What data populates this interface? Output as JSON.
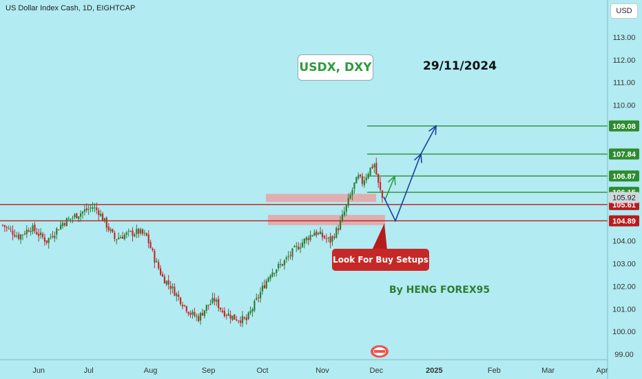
{
  "header": {
    "symbol_title": "US Dollar Index Cash, 1D, EIGHTCAP",
    "currency": "USD"
  },
  "annotations": {
    "title_box": "USDX, DXY",
    "date": "29/11/2024",
    "author": "By HENG FOREX95",
    "callout": "Look For Buy Setups"
  },
  "colors": {
    "background": "#b2ebf2",
    "candle_up": "#2e7d32",
    "candle_down": "#c62828",
    "target_line": "#2e8b2e",
    "support_line": "#b71c1c",
    "projection_blue": "#1a3f9e",
    "projection_green": "#2e9a3f",
    "zone": "#ef9a9a"
  },
  "chart_data": {
    "type": "candlestick",
    "title": "US Dollar Index Cash, 1D, EIGHTCAP",
    "ylim": [
      98.8,
      114.3
    ],
    "y_axis_ticks": [
      "113.00",
      "112.00",
      "111.00",
      "110.00",
      "109.00",
      "108.00",
      "107.00",
      "106.00",
      "105.00",
      "104.00",
      "103.00",
      "102.00",
      "101.00",
      "100.00",
      "99.00"
    ],
    "x_axis_ticks": [
      "Jun",
      "Jul",
      "Aug",
      "Sep",
      "Oct",
      "Nov",
      "Dec",
      "2025",
      "Feb",
      "Mar",
      "Apr"
    ],
    "current_price": 105.92,
    "price_levels": [
      {
        "value": 109.08,
        "role": "target"
      },
      {
        "value": 107.84,
        "role": "target"
      },
      {
        "value": 106.87,
        "role": "target"
      },
      {
        "value": 106.15,
        "role": "target"
      },
      {
        "value": 105.61,
        "role": "support"
      },
      {
        "value": 104.89,
        "role": "support"
      }
    ],
    "close_anchors": [
      [
        0,
        104.7
      ],
      [
        8,
        104.2
      ],
      [
        14,
        104.6
      ],
      [
        22,
        104.0
      ],
      [
        30,
        104.8
      ],
      [
        38,
        105.2
      ],
      [
        45,
        105.5
      ],
      [
        48,
        105.3
      ],
      [
        52,
        104.7
      ],
      [
        56,
        104.1
      ],
      [
        62,
        104.3
      ],
      [
        68,
        104.4
      ],
      [
        72,
        104.2
      ],
      [
        76,
        103.2
      ],
      [
        80,
        102.4
      ],
      [
        84,
        102.0
      ],
      [
        88,
        101.5
      ],
      [
        94,
        100.8
      ],
      [
        98,
        100.6
      ],
      [
        102,
        101.1
      ],
      [
        106,
        101.4
      ],
      [
        110,
        100.9
      ],
      [
        116,
        100.6
      ],
      [
        122,
        100.5
      ],
      [
        126,
        101.2
      ],
      [
        130,
        101.9
      ],
      [
        134,
        102.6
      ],
      [
        140,
        103.0
      ],
      [
        146,
        103.6
      ],
      [
        152,
        104.1
      ],
      [
        156,
        104.4
      ],
      [
        160,
        104.2
      ],
      [
        164,
        104.0
      ],
      [
        168,
        104.6
      ],
      [
        172,
        105.5
      ],
      [
        174,
        106.0
      ],
      [
        176,
        106.5
      ],
      [
        178,
        106.8
      ],
      [
        180,
        106.6
      ],
      [
        182,
        106.9
      ],
      [
        184,
        107.2
      ],
      [
        186,
        107.4
      ],
      [
        188,
        106.5
      ],
      [
        190,
        105.9
      ]
    ]
  }
}
